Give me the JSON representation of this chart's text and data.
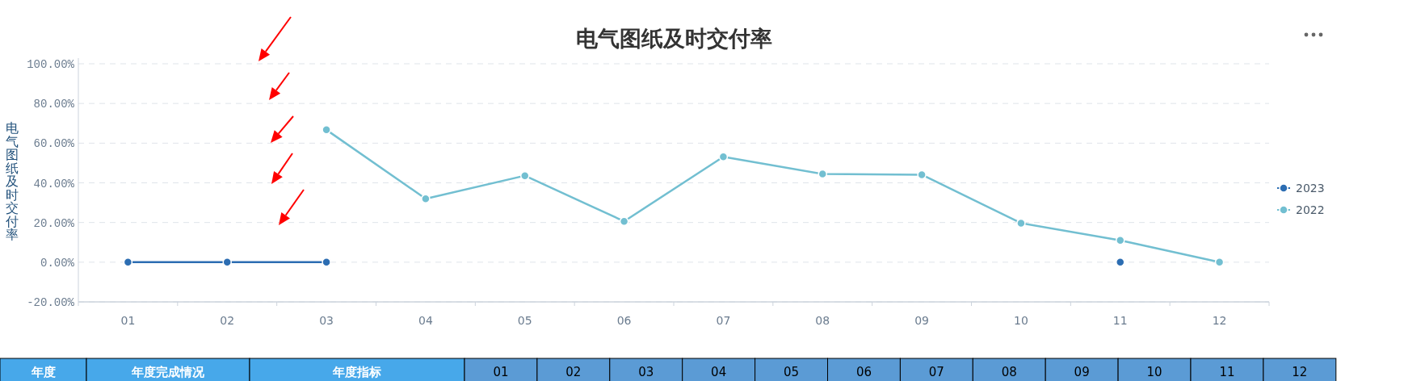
{
  "chart_data": {
    "type": "line",
    "title": "电气图纸及时交付率",
    "ylabel": "电气图纸及时交付率",
    "categories": [
      "01",
      "02",
      "03",
      "04",
      "05",
      "06",
      "07",
      "08",
      "09",
      "10",
      "11",
      "12"
    ],
    "series": [
      {
        "name": "2023",
        "color": "#2c6db2",
        "values": [
          0,
          0,
          0,
          null,
          null,
          null,
          null,
          null,
          null,
          null,
          0,
          null
        ]
      },
      {
        "name": "2022",
        "color": "#72bfd1",
        "values": [
          null,
          null,
          66.7,
          32.0,
          43.6,
          20.6,
          53.1,
          44.5,
          44.1,
          19.7,
          11.0,
          0
        ]
      }
    ],
    "ylim": [
      -20,
      100
    ],
    "yticks": [
      {
        "value": -20,
        "label": "-20.00%"
      },
      {
        "value": 0,
        "label": "0.00%"
      },
      {
        "value": 20,
        "label": "20.00%"
      },
      {
        "value": 40,
        "label": "40.00%"
      },
      {
        "value": 60,
        "label": "60.00%"
      },
      {
        "value": 80,
        "label": "80.00%"
      },
      {
        "value": 100,
        "label": "100.00%"
      }
    ],
    "grid": "y",
    "legend": "right",
    "marker": "circle",
    "line_style": "solid",
    "annotations": [
      "年度",
      "年度完成情况",
      "年度指标"
    ]
  }
}
